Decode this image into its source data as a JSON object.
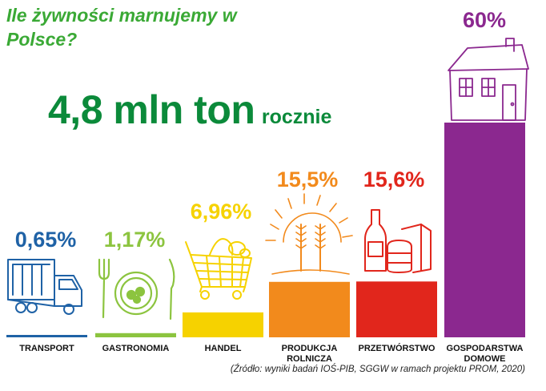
{
  "title": "Ile żywności marnujemy w Polsce?",
  "headline": {
    "value": "4,8 mln ton",
    "suffix": "rocznie"
  },
  "source": "(Źródło: wyniki badań IOŚ-PIB, SGGW w ramach projektu PROM, 2020)",
  "chart_data": {
    "type": "bar",
    "categories": [
      [
        "TRANSPORT"
      ],
      [
        "GASTRONOMIA"
      ],
      [
        "HANDEL"
      ],
      [
        "PRODUKCJA",
        "ROLNICZA"
      ],
      [
        "PRZETWÓRSTWO"
      ],
      [
        "GOSPODARSTWA",
        "DOMOWE"
      ]
    ],
    "values": [
      0.65,
      1.17,
      6.96,
      15.5,
      15.6,
      60
    ],
    "value_labels": [
      "0,65%",
      "1,17%",
      "6,96%",
      "15,5%",
      "15,6%",
      "60%"
    ],
    "colors": [
      "#1f62a6",
      "#8cc43f",
      "#f6d200",
      "#f28a1c",
      "#e1261c",
      "#8b288f"
    ],
    "icons": [
      "truck-icon",
      "plate-cutlery-icon",
      "shopping-basket-icon",
      "wheat-sun-icon",
      "bottle-jar-icon",
      "house-icon"
    ],
    "ylim": [
      0,
      60
    ]
  }
}
